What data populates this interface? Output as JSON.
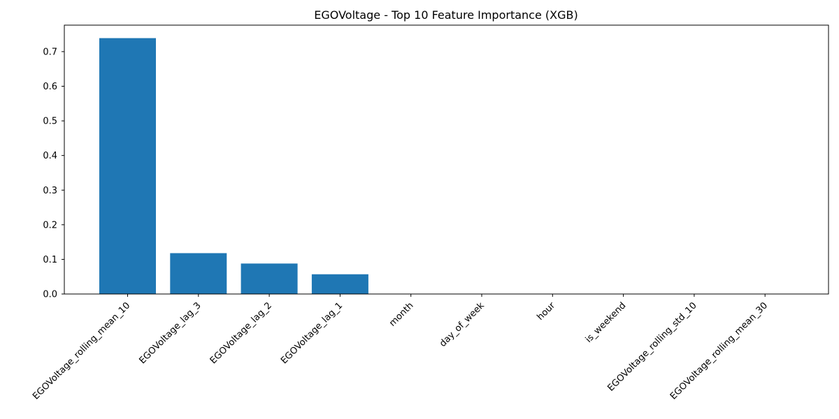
{
  "chart_data": {
    "type": "bar",
    "title": "EGOVoltage - Top 10 Feature Importance (XGB)",
    "xlabel": "",
    "ylabel": "",
    "categories": [
      "EGOVoltage_rolling_mean_10",
      "EGOVoltage_lag_3",
      "EGOVoltage_lag_2",
      "EGOVoltage_lag_1",
      "month",
      "day_of_week",
      "hour",
      "is_weekend",
      "EGOVoltage_rolling_std_10",
      "EGOVoltage_rolling_mean_30"
    ],
    "values": [
      0.739,
      0.118,
      0.088,
      0.057,
      0.0,
      0.0,
      0.0,
      0.0,
      0.0,
      0.0
    ],
    "ylim": [
      0,
      0.7765
    ],
    "yticks": [
      0.0,
      0.1,
      0.2,
      0.3,
      0.4,
      0.5,
      0.6,
      0.7
    ],
    "ytick_labels": [
      "0.0",
      "0.1",
      "0.2",
      "0.3",
      "0.4",
      "0.5",
      "0.6",
      "0.7"
    ],
    "bar_color": "#1f77b4",
    "grid": false,
    "legend": "none"
  }
}
